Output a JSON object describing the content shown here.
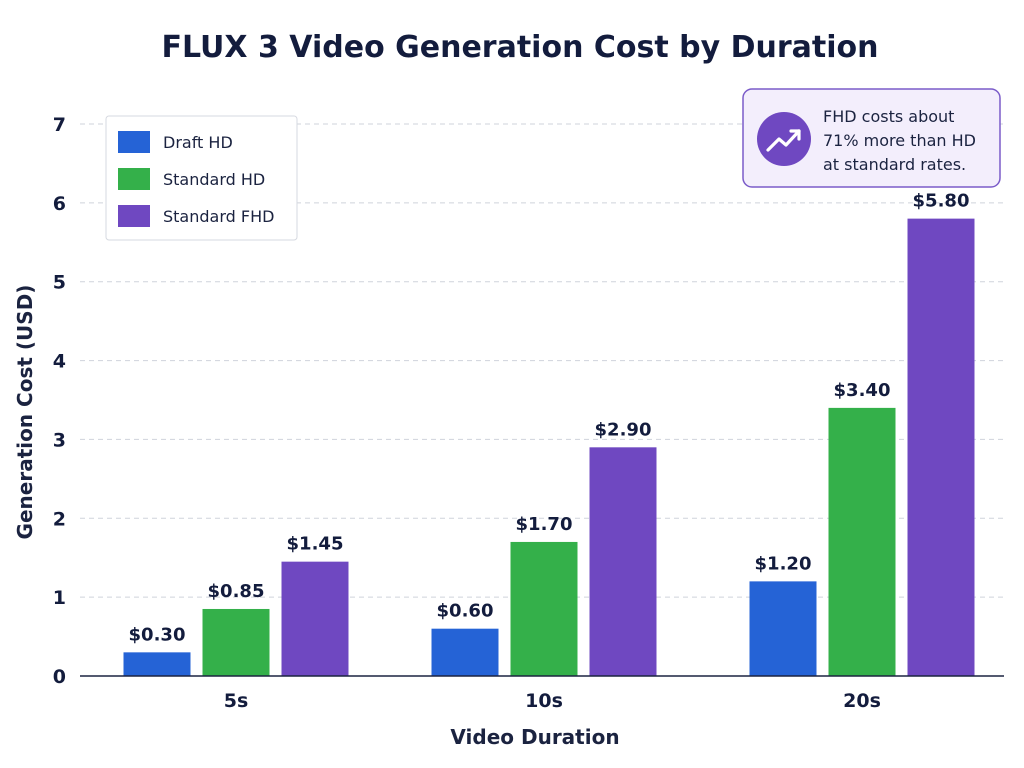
{
  "chart_data": {
    "type": "bar",
    "title": "FLUX 3 Video Generation Cost by Duration",
    "xlabel": "Video Duration",
    "ylabel": "Generation Cost (USD)",
    "categories": [
      "5s",
      "10s",
      "20s"
    ],
    "ylim": [
      0,
      7
    ],
    "yticks": [
      "0",
      "1",
      "2",
      "3",
      "4",
      "5",
      "6",
      "7"
    ],
    "grid": "horizontal dashed",
    "legend_position": "top-left",
    "series": [
      {
        "name": "Draft HD",
        "color": "#2563d6",
        "values": [
          0.3,
          0.6,
          1.2
        ],
        "labels": [
          "$0.30",
          "$0.60",
          "$1.20"
        ]
      },
      {
        "name": "Standard HD",
        "color": "#34b04a",
        "values": [
          0.85,
          1.7,
          3.4
        ],
        "labels": [
          "$0.85",
          "$1.70",
          "$3.40"
        ]
      },
      {
        "name": "Standard FHD",
        "color": "#6f48c1",
        "values": [
          1.45,
          2.9,
          5.8
        ],
        "labels": [
          "$1.45",
          "$2.90",
          "$5.80"
        ]
      }
    ],
    "annotation": {
      "lines": [
        "FHD costs about",
        "71% more than HD",
        "at standard rates."
      ],
      "icon": "trending-up-icon",
      "position": "top-right",
      "border_color": "#7b5cc9",
      "background": "#f3eefc",
      "icon_color": "#6f48c1"
    }
  }
}
